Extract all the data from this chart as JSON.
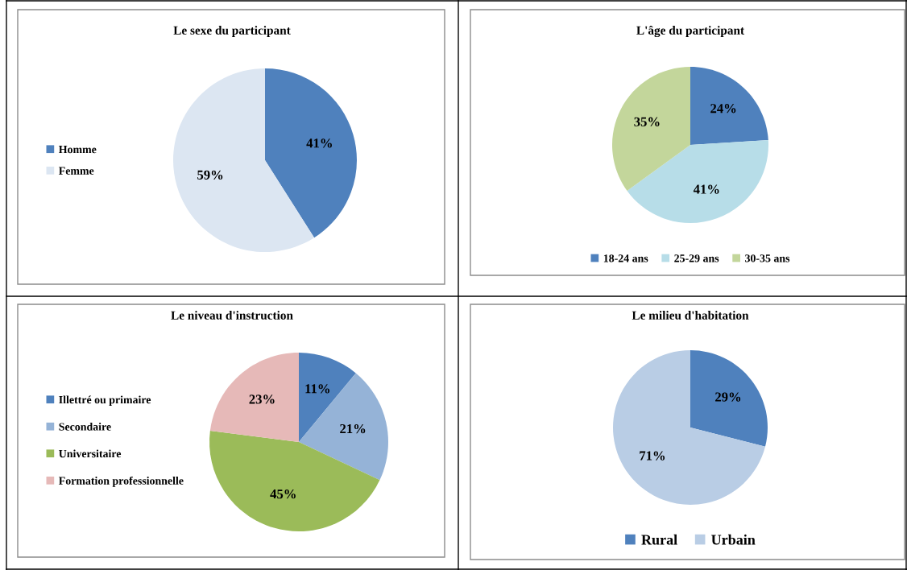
{
  "chart_data": [
    {
      "type": "pie",
      "title": "Le sexe du participant",
      "categories": [
        "Homme",
        "Femme"
      ],
      "values": [
        41,
        59
      ],
      "colors": [
        "#4f81bd",
        "#dce6f2"
      ],
      "value_labels": [
        "41%",
        "59%"
      ],
      "legend": "left"
    },
    {
      "type": "pie",
      "title": "L'âge du participant",
      "categories": [
        "18-24 ans",
        "25-29 ans",
        "30-35 ans"
      ],
      "values": [
        24,
        41,
        35
      ],
      "colors": [
        "#4f81bd",
        "#b7dde8",
        "#c3d69b"
      ],
      "value_labels": [
        "24%",
        "41%",
        "35%"
      ],
      "legend": "bottom"
    },
    {
      "type": "pie",
      "title": "Le niveau d'instruction",
      "categories": [
        "Illettré ou primaire",
        "Secondaire",
        "Universitaire",
        "Formation professionnelle"
      ],
      "values": [
        11,
        21,
        45,
        23
      ],
      "colors": [
        "#4f81bd",
        "#95b3d7",
        "#9bbb59",
        "#e6b9b8"
      ],
      "value_labels": [
        "11%",
        "21%",
        "45%",
        "23%"
      ],
      "legend": "left"
    },
    {
      "type": "pie",
      "title": "Le milieu d'habitation",
      "categories": [
        "Rural",
        "Urbain"
      ],
      "values": [
        29,
        71
      ],
      "colors": [
        "#4f81bd",
        "#b9cde5"
      ],
      "value_labels": [
        "29%",
        "71%"
      ],
      "legend": "bottom"
    }
  ]
}
